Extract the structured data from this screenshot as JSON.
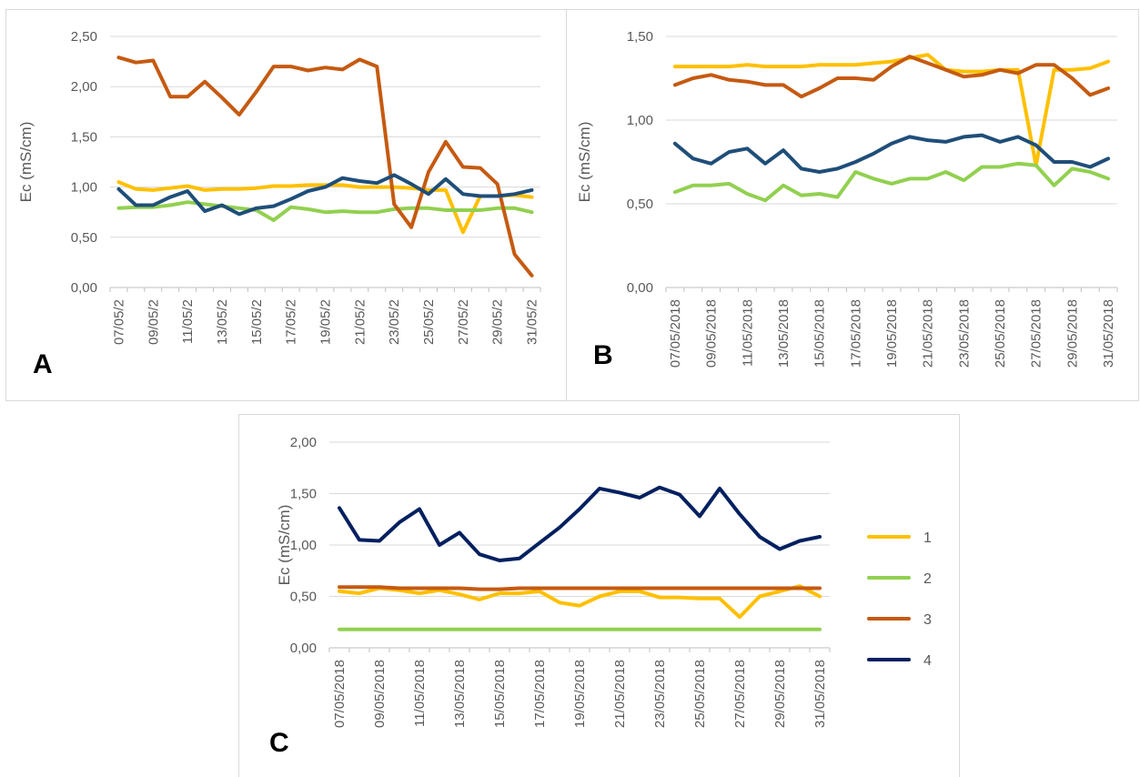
{
  "chart_data": [
    {
      "panel_label": "A",
      "type": "line",
      "ylabel": "Ec (mS/cm)",
      "ylim": [
        0,
        2.5
      ],
      "yticks": [
        "0,00",
        "0,50",
        "1,00",
        "1,50",
        "2,00",
        "2,50"
      ],
      "x_tick_labels": [
        "07/05/2",
        "09/05/2",
        "11/05/2",
        "13/05/2",
        "15/05/2",
        "17/05/2",
        "19/05/2",
        "21/05/2",
        "23/05/2",
        "25/05/2",
        "27/05/2",
        "29/05/2",
        "31/05/2"
      ],
      "x": [
        "07/05/2018",
        "08/05/2018",
        "09/05/2018",
        "10/05/2018",
        "11/05/2018",
        "12/05/2018",
        "13/05/2018",
        "14/05/2018",
        "15/05/2018",
        "16/05/2018",
        "17/05/2018",
        "18/05/2018",
        "19/05/2018",
        "20/05/2018",
        "21/05/2018",
        "22/05/2018",
        "23/05/2018",
        "24/05/2018",
        "25/05/2018",
        "26/05/2018",
        "27/05/2018",
        "28/05/2018",
        "29/05/2018",
        "30/05/2018",
        "31/05/2018"
      ],
      "grid": true,
      "legend": "none",
      "series": [
        {
          "name": "1",
          "color": "#FFC000",
          "values": [
            1.05,
            0.98,
            0.97,
            0.99,
            1.01,
            0.97,
            0.98,
            0.98,
            0.99,
            1.01,
            1.01,
            1.02,
            1.02,
            1.02,
            1.0,
            1.0,
            1.0,
            0.99,
            0.97,
            0.97,
            0.55,
            0.91,
            0.91,
            0.92,
            0.9
          ]
        },
        {
          "name": "2",
          "color": "#92D050",
          "values": [
            0.79,
            0.8,
            0.8,
            0.82,
            0.85,
            0.83,
            0.81,
            0.79,
            0.77,
            0.67,
            0.8,
            0.78,
            0.75,
            0.76,
            0.75,
            0.75,
            0.78,
            0.79,
            0.79,
            0.77,
            0.77,
            0.77,
            0.79,
            0.79,
            0.75
          ]
        },
        {
          "name": "3",
          "color": "#C55A11",
          "values": [
            2.29,
            2.24,
            2.26,
            1.9,
            1.9,
            2.05,
            1.89,
            1.72,
            1.95,
            2.2,
            2.2,
            2.16,
            2.19,
            2.17,
            2.27,
            2.2,
            0.83,
            0.6,
            1.15,
            1.45,
            1.2,
            1.19,
            1.03,
            0.33,
            0.12
          ]
        },
        {
          "name": "4",
          "color": "#1F4E79",
          "values": [
            0.98,
            0.82,
            0.82,
            0.9,
            0.96,
            0.76,
            0.82,
            0.73,
            0.79,
            0.81,
            0.88,
            0.96,
            1.0,
            1.09,
            1.06,
            1.04,
            1.12,
            1.03,
            0.93,
            1.08,
            0.93,
            0.91,
            0.91,
            0.93,
            0.97
          ]
        }
      ]
    },
    {
      "panel_label": "B",
      "type": "line",
      "ylabel": "Ec (mS/cm)",
      "ylim": [
        0,
        1.5
      ],
      "yticks": [
        "0,00",
        "0,50",
        "1,00",
        "1,50"
      ],
      "x_tick_labels": [
        "07/05/2018",
        "09/05/2018",
        "11/05/2018",
        "13/05/2018",
        "15/05/2018",
        "17/05/2018",
        "19/05/2018",
        "21/05/2018",
        "23/05/2018",
        "25/05/2018",
        "27/05/2018",
        "29/05/2018",
        "31/05/2018"
      ],
      "x": [
        "07/05/2018",
        "08/05/2018",
        "09/05/2018",
        "10/05/2018",
        "11/05/2018",
        "12/05/2018",
        "13/05/2018",
        "14/05/2018",
        "15/05/2018",
        "16/05/2018",
        "17/05/2018",
        "18/05/2018",
        "19/05/2018",
        "20/05/2018",
        "21/05/2018",
        "22/05/2018",
        "23/05/2018",
        "24/05/2018",
        "25/05/2018",
        "26/05/2018",
        "27/05/2018",
        "28/05/2018",
        "29/05/2018",
        "30/05/2018",
        "31/05/2018"
      ],
      "grid": true,
      "legend": "none",
      "series": [
        {
          "name": "1",
          "color": "#FFC000",
          "values": [
            1.32,
            1.32,
            1.32,
            1.32,
            1.33,
            1.32,
            1.32,
            1.32,
            1.33,
            1.33,
            1.33,
            1.34,
            1.35,
            1.37,
            1.39,
            1.3,
            1.29,
            1.29,
            1.3,
            1.3,
            0.73,
            1.3,
            1.3,
            1.31,
            1.35
          ]
        },
        {
          "name": "2",
          "color": "#92D050",
          "values": [
            0.57,
            0.61,
            0.61,
            0.62,
            0.56,
            0.52,
            0.61,
            0.55,
            0.56,
            0.54,
            0.69,
            0.65,
            0.62,
            0.65,
            0.65,
            0.69,
            0.64,
            0.72,
            0.72,
            0.74,
            0.73,
            0.61,
            0.71,
            0.69,
            0.65
          ]
        },
        {
          "name": "3",
          "color": "#C55A11",
          "values": [
            1.21,
            1.25,
            1.27,
            1.24,
            1.23,
            1.21,
            1.21,
            1.14,
            1.19,
            1.25,
            1.25,
            1.24,
            1.32,
            1.38,
            1.34,
            1.3,
            1.26,
            1.27,
            1.3,
            1.28,
            1.33,
            1.33,
            1.25,
            1.15,
            1.19
          ]
        },
        {
          "name": "4",
          "color": "#1F4E79",
          "values": [
            0.86,
            0.77,
            0.74,
            0.81,
            0.83,
            0.74,
            0.82,
            0.71,
            0.69,
            0.71,
            0.75,
            0.8,
            0.86,
            0.9,
            0.88,
            0.87,
            0.9,
            0.91,
            0.87,
            0.9,
            0.85,
            0.75,
            0.75,
            0.72,
            0.77
          ]
        }
      ]
    },
    {
      "panel_label": "C",
      "type": "line",
      "ylabel": "Ec (mS/cm)",
      "ylim": [
        0,
        2
      ],
      "yticks": [
        "0,00",
        "0,50",
        "1,00",
        "1,50",
        "2,00"
      ],
      "x_tick_labels": [
        "07/05/2018",
        "09/05/2018",
        "11/05/2018",
        "13/05/2018",
        "15/05/2018",
        "17/05/2018",
        "19/05/2018",
        "21/05/2018",
        "23/05/2018",
        "25/05/2018",
        "27/05/2018",
        "29/05/2018",
        "31/05/2018"
      ],
      "x": [
        "07/05/2018",
        "08/05/2018",
        "09/05/2018",
        "10/05/2018",
        "11/05/2018",
        "12/05/2018",
        "13/05/2018",
        "14/05/2018",
        "15/05/2018",
        "16/05/2018",
        "17/05/2018",
        "18/05/2018",
        "19/05/2018",
        "20/05/2018",
        "21/05/2018",
        "22/05/2018",
        "23/05/2018",
        "24/05/2018",
        "25/05/2018",
        "26/05/2018",
        "27/05/2018",
        "28/05/2018",
        "29/05/2018",
        "30/05/2018",
        "31/05/2018"
      ],
      "grid": true,
      "legend": "right",
      "series": [
        {
          "name": "1",
          "color": "#FFC000",
          "values": [
            0.55,
            0.53,
            0.58,
            0.56,
            0.53,
            0.56,
            0.52,
            0.47,
            0.53,
            0.53,
            0.55,
            0.44,
            0.41,
            0.5,
            0.55,
            0.55,
            0.49,
            0.49,
            0.48,
            0.48,
            0.3,
            0.5,
            0.55,
            0.6,
            0.5
          ]
        },
        {
          "name": "2",
          "color": "#92D050",
          "values": [
            0.18,
            0.18,
            0.18,
            0.18,
            0.18,
            0.18,
            0.18,
            0.18,
            0.18,
            0.18,
            0.18,
            0.18,
            0.18,
            0.18,
            0.18,
            0.18,
            0.18,
            0.18,
            0.18,
            0.18,
            0.18,
            0.18,
            0.18,
            0.18,
            0.18
          ]
        },
        {
          "name": "3",
          "color": "#C55A11",
          "values": [
            0.59,
            0.59,
            0.59,
            0.58,
            0.58,
            0.58,
            0.58,
            0.57,
            0.57,
            0.58,
            0.58,
            0.58,
            0.58,
            0.58,
            0.58,
            0.58,
            0.58,
            0.58,
            0.58,
            0.58,
            0.58,
            0.58,
            0.58,
            0.58,
            0.58
          ]
        },
        {
          "name": "4",
          "color": "#002060",
          "values": [
            1.36,
            1.05,
            1.04,
            1.22,
            1.35,
            1.0,
            1.12,
            0.91,
            0.85,
            0.87,
            1.02,
            1.17,
            1.35,
            1.55,
            1.51,
            1.46,
            1.56,
            1.49,
            1.28,
            1.55,
            1.3,
            1.08,
            0.96,
            1.04,
            1.08
          ]
        }
      ]
    }
  ]
}
